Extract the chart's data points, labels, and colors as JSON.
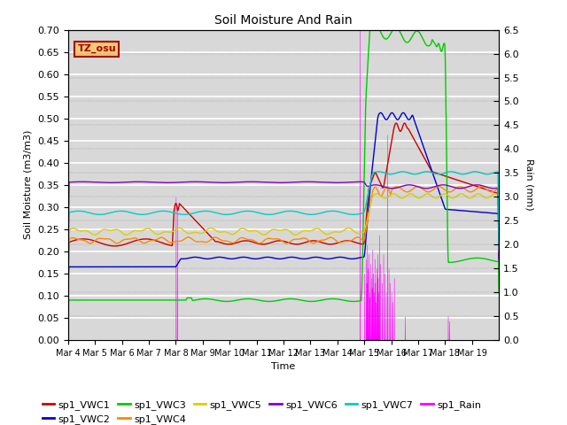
{
  "title": "Soil Moisture And Rain",
  "xlabel": "Time",
  "ylabel_left": "Soil Moisture (m3/m3)",
  "ylabel_right": "Rain (mm)",
  "ylim_left": [
    0.0,
    0.7
  ],
  "ylim_right": [
    0.0,
    6.5
  ],
  "xlim": [
    0,
    16
  ],
  "annotation_text": "TZ_osu",
  "annotation_color": "#aa0000",
  "annotation_box_color": "#eecc77",
  "xtick_labels": [
    "Mar 4",
    "Mar 5",
    "Mar 6",
    "Mar 7",
    "Mar 8",
    "Mar 9",
    "Mar 10",
    "Mar 11",
    "Mar 12",
    "Mar 13",
    "Mar 14",
    "Mar 15",
    "Mar 16",
    "Mar 17",
    "Mar 18",
    "Mar 19"
  ],
  "bg_color": "#d8d8d8",
  "grid_color": "#ffffff",
  "series_colors": {
    "VWC1": "#cc0000",
    "VWC2": "#0000cc",
    "VWC3": "#00cc00",
    "VWC4": "#ff8800",
    "VWC5": "#ddcc00",
    "VWC6": "#8800bb",
    "VWC7": "#00cccc",
    "Rain": "#ff00ff"
  },
  "right_axis_dotted": true,
  "yticks_left": [
    0.0,
    0.05,
    0.1,
    0.15,
    0.2,
    0.25,
    0.3,
    0.35,
    0.4,
    0.45,
    0.5,
    0.55,
    0.6,
    0.65,
    0.7
  ],
  "yticks_right": [
    0.0,
    0.5,
    1.0,
    1.5,
    2.0,
    2.5,
    3.0,
    3.5,
    4.0,
    4.5,
    5.0,
    5.5,
    6.0,
    6.5
  ]
}
